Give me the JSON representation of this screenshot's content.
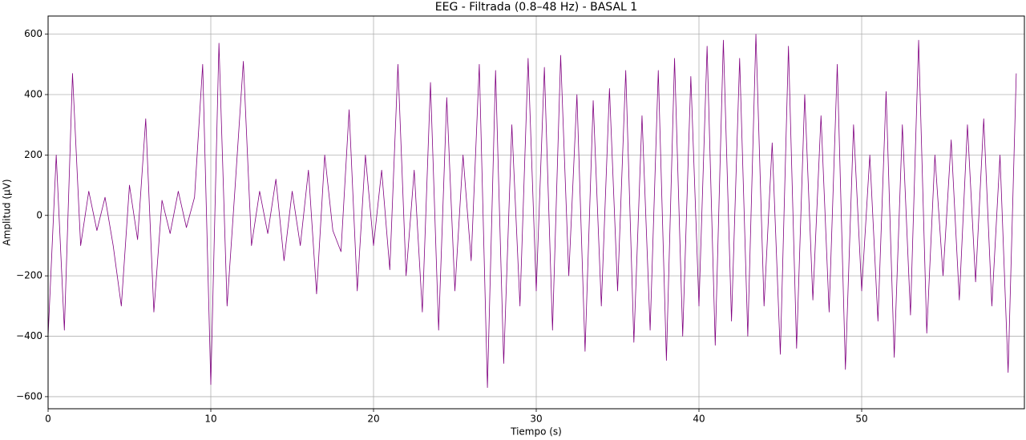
{
  "chart_data": {
    "type": "line",
    "title": "EEG - Filtrada (0.8–48 Hz) - BASAL 1",
    "x_label": "Tiempo (s)",
    "y_label": "Amplitud (μV)",
    "grid": true,
    "xlim": [
      0,
      60
    ],
    "ylim": [
      -640,
      660
    ],
    "xticks": [
      0,
      10,
      20,
      30,
      40,
      50
    ],
    "yticks": [
      {
        "value": -600,
        "label": "−600"
      },
      {
        "value": -400,
        "label": "−400"
      },
      {
        "value": -200,
        "label": "−200"
      },
      0,
      200,
      400,
      600
    ],
    "x": [
      0,
      0.5,
      1,
      1.5,
      2,
      2.5,
      3,
      3.5,
      4,
      4.5,
      5,
      5.5,
      6,
      6.5,
      7,
      7.5,
      8,
      8.5,
      9,
      9.5,
      10,
      10.5,
      11,
      11.5,
      12,
      12.5,
      13,
      13.5,
      14,
      14.5,
      15,
      15.5,
      16,
      16.5,
      17,
      17.5,
      18,
      18.5,
      19,
      19.5,
      20,
      20.5,
      21,
      21.5,
      22,
      22.5,
      23,
      23.5,
      24,
      24.5,
      25,
      25.5,
      26,
      26.5,
      27,
      27.5,
      28,
      28.5,
      29,
      29.5,
      30,
      30.5,
      31,
      31.5,
      32,
      32.5,
      33,
      33.5,
      34,
      34.5,
      35,
      35.5,
      36,
      36.5,
      37,
      37.5,
      38,
      38.5,
      39,
      39.5,
      40,
      40.5,
      41,
      41.5,
      42,
      42.5,
      43,
      43.5,
      44,
      44.5,
      45,
      45.5,
      46,
      46.5,
      47,
      47.5,
      48,
      48.5,
      49,
      49.5,
      50,
      50.5,
      51,
      51.5,
      52,
      52.5,
      53,
      53.5,
      54,
      54.5,
      55,
      55.5,
      56,
      56.5,
      57,
      57.5,
      58,
      58.5,
      59,
      59.5
    ],
    "series": [
      {
        "color": "#800080",
        "values": [
          -400,
          200,
          -380,
          470,
          -100,
          80,
          -50,
          60,
          -100,
          -300,
          100,
          -80,
          320,
          -320,
          50,
          -60,
          80,
          -40,
          60,
          500,
          -560,
          570,
          -300,
          100,
          510,
          -100,
          80,
          -60,
          120,
          -150,
          80,
          -100,
          150,
          -260,
          200,
          -50,
          -120,
          350,
          -250,
          200,
          -100,
          150,
          -180,
          500,
          -200,
          150,
          -320,
          440,
          -380,
          390,
          -250,
          200,
          -150,
          500,
          -570,
          480,
          -490,
          300,
          -300,
          520,
          -250,
          490,
          -380,
          530,
          -200,
          400,
          -450,
          380,
          -300,
          420,
          -250,
          480,
          -420,
          330,
          -380,
          480,
          -480,
          520,
          -400,
          460,
          -300,
          560,
          -430,
          580,
          -350,
          520,
          -400,
          600,
          -300,
          240,
          -460,
          560,
          -440,
          400,
          -280,
          330,
          -320,
          500,
          -510,
          300,
          -250,
          200,
          -350,
          410,
          -470,
          300,
          -330,
          580,
          -390,
          200,
          -200,
          250,
          -280,
          300,
          -220,
          320,
          -300,
          200,
          -520,
          470
        ]
      }
    ]
  }
}
